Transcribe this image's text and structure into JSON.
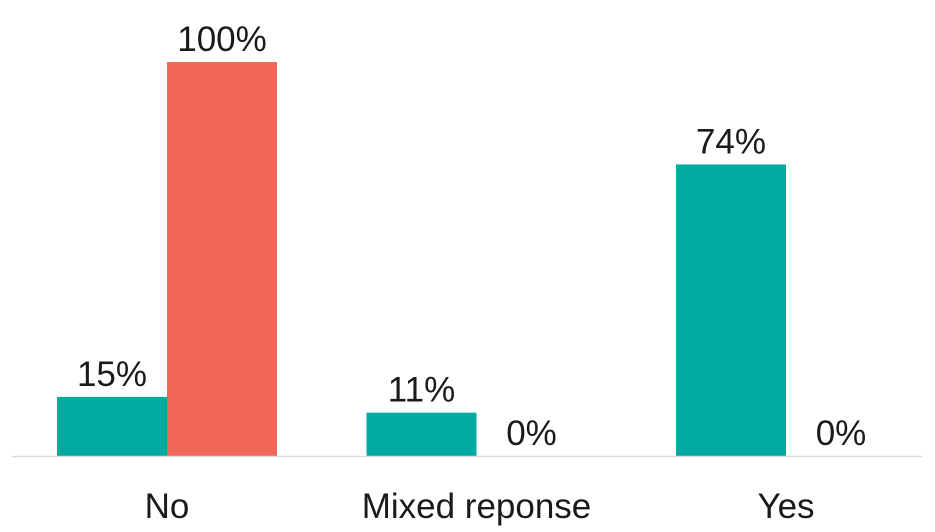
{
  "chart_data": {
    "type": "bar",
    "title": "",
    "xlabel": "",
    "ylabel": "",
    "categories": [
      "No",
      "Mixed reponse",
      "Yes"
    ],
    "series": [
      {
        "values": [
          15,
          11,
          74
        ],
        "labels": [
          "15%",
          "11%",
          "74%"
        ],
        "color": "#00ABA0"
      },
      {
        "values": [
          100,
          0,
          0
        ],
        "labels": [
          "100%",
          "0%",
          "0%"
        ],
        "color": "#F26657"
      }
    ],
    "ylim": [
      0,
      100
    ],
    "grid": false,
    "legend": "none",
    "axis_color": "#D9D9D9"
  }
}
